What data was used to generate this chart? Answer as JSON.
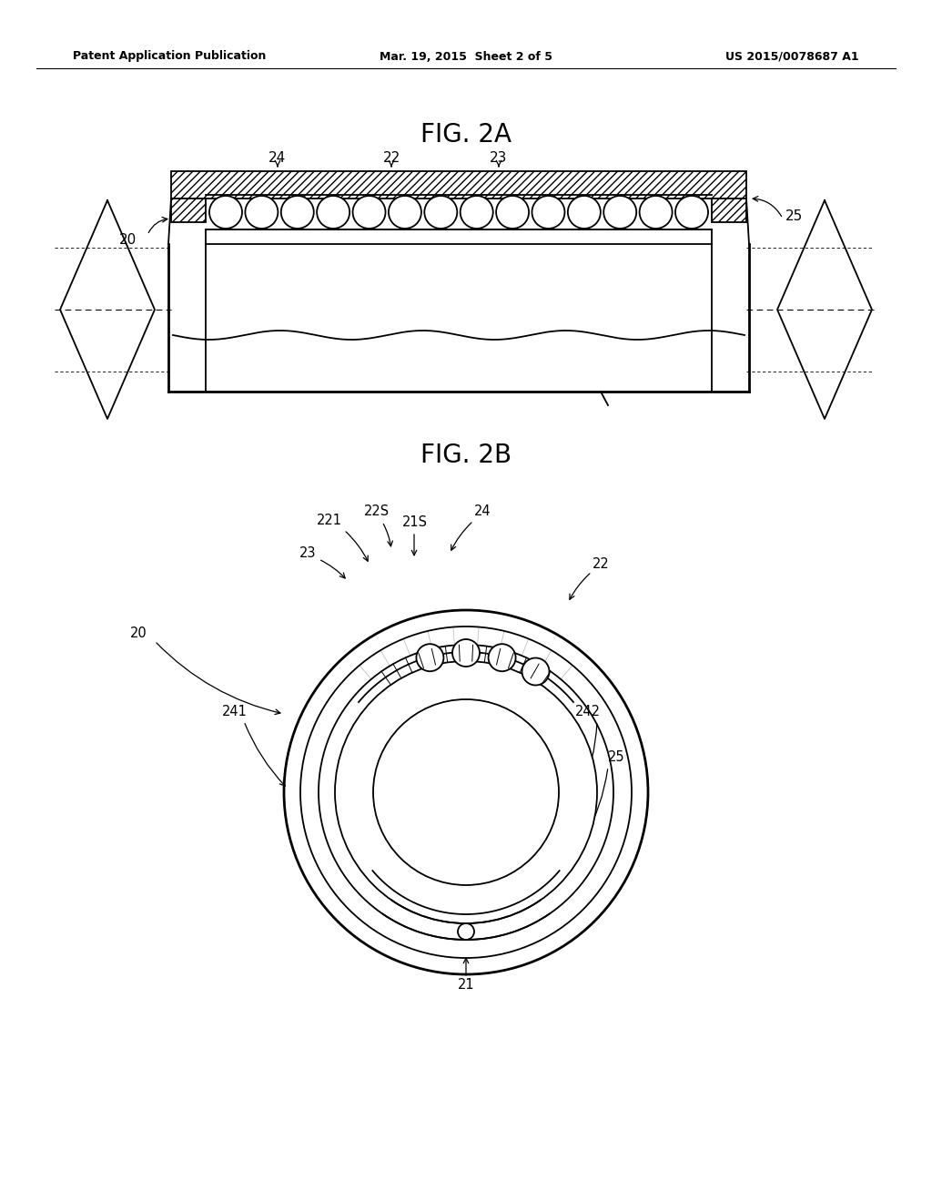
{
  "bg_color": "#ffffff",
  "line_color": "#000000",
  "header_left": "Patent Application Publication",
  "header_mid": "Mar. 19, 2015  Sheet 2 of 5",
  "header_right": "US 2015/0078687 A1",
  "fig2a_title": "FIG. 2A",
  "fig2b_title": "FIG. 2B"
}
